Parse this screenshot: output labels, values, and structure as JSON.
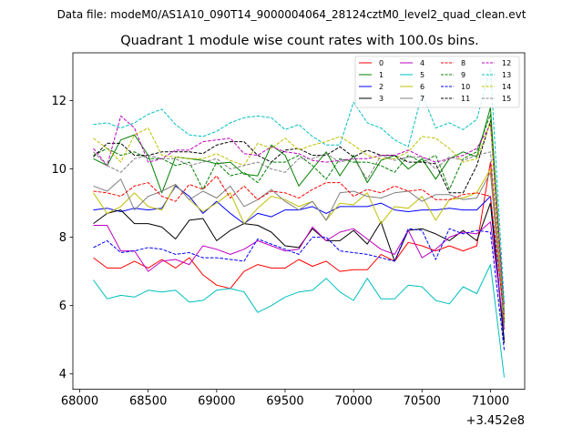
{
  "chart_data": {
    "type": "line",
    "suptitle": "Data file: modeM0/AS1A10_090T14_9000004064_28124cztM0_level2_quad_clean.evt",
    "title": "Quadrant 1 module wise count rates with 100.0s bins.",
    "xlabel": "",
    "ylabel": "",
    "x_offset_label": "+3.452e8",
    "xlim": [
      67950,
      71250
    ],
    "ylim": [
      3.55,
      13.4
    ],
    "x_ticks": [
      68000,
      68500,
      69000,
      69500,
      70000,
      70500,
      71000
    ],
    "x_tick_labels": [
      "68000",
      "68500",
      "69000",
      "69500",
      "70000",
      "70500",
      "71000"
    ],
    "y_ticks": [
      4,
      6,
      8,
      10,
      12
    ],
    "y_tick_labels": [
      "4",
      "6",
      "8",
      "10",
      "12"
    ],
    "legend_position": "top-right",
    "x": [
      68100,
      68200,
      68300,
      68400,
      68500,
      68600,
      68700,
      68800,
      68900,
      69000,
      69100,
      69200,
      69300,
      69400,
      69500,
      69600,
      69700,
      69800,
      69900,
      70000,
      70100,
      70200,
      70300,
      70400,
      70500,
      70600,
      70700,
      70800,
      70900,
      71000,
      71100
    ],
    "series": [
      {
        "name": "0",
        "color": "#ff0000",
        "dash": "solid",
        "values": [
          7.4,
          7.1,
          7.1,
          7.3,
          7.1,
          7.35,
          7.1,
          7.4,
          6.9,
          6.6,
          6.5,
          7.0,
          7.2,
          7.1,
          7.1,
          7.35,
          7.15,
          7.3,
          7.0,
          7.05,
          7.05,
          7.5,
          7.3,
          7.85,
          7.75,
          7.6,
          7.75,
          7.6,
          7.75,
          10.2,
          5.5
        ]
      },
      {
        "name": "1",
        "color": "#008000",
        "dash": "solid",
        "values": [
          10.3,
          10.1,
          10.85,
          11.0,
          10.4,
          9.3,
          10.35,
          10.3,
          10.25,
          10.15,
          10.2,
          9.85,
          9.8,
          10.7,
          10.4,
          9.5,
          10.0,
          10.5,
          9.8,
          10.4,
          9.6,
          10.25,
          10.4,
          10.0,
          10.3,
          9.7,
          10.3,
          10.5,
          10.35,
          11.8,
          5.8
        ]
      },
      {
        "name": "2",
        "color": "#0000ff",
        "dash": "solid",
        "values": [
          8.8,
          8.85,
          8.75,
          8.85,
          8.8,
          8.85,
          9.5,
          9.2,
          8.7,
          9.05,
          8.7,
          8.4,
          8.7,
          8.6,
          8.8,
          8.8,
          8.9,
          8.7,
          8.9,
          8.9,
          8.9,
          9.0,
          8.8,
          8.75,
          8.8,
          8.8,
          8.85,
          8.8,
          8.8,
          9.2,
          5.0
        ]
      },
      {
        "name": "3",
        "color": "#000000",
        "dash": "solid",
        "values": [
          8.4,
          8.7,
          8.8,
          8.4,
          8.4,
          8.3,
          7.95,
          8.5,
          8.55,
          7.9,
          8.2,
          8.4,
          8.35,
          8.15,
          7.75,
          7.7,
          8.25,
          7.9,
          7.9,
          8.2,
          7.8,
          8.45,
          7.3,
          8.2,
          8.25,
          8.1,
          7.9,
          8.2,
          7.9,
          9.0,
          4.9
        ]
      },
      {
        "name": "4",
        "color": "#bf00bf",
        "dash": "solid",
        "values": [
          8.35,
          8.35,
          7.6,
          7.6,
          7.0,
          7.3,
          7.35,
          7.2,
          7.75,
          7.65,
          7.5,
          7.65,
          7.9,
          7.75,
          7.6,
          7.65,
          8.3,
          7.9,
          8.15,
          8.25,
          7.95,
          7.65,
          7.5,
          8.2,
          7.4,
          7.65,
          8.0,
          8.15,
          8.1,
          8.45,
          5.3
        ]
      },
      {
        "name": "5",
        "color": "#00bfbf",
        "dash": "solid",
        "values": [
          6.75,
          6.2,
          6.3,
          6.25,
          6.45,
          6.4,
          6.45,
          6.1,
          6.15,
          6.45,
          6.5,
          6.4,
          5.8,
          6.0,
          6.25,
          6.4,
          6.45,
          6.8,
          6.4,
          6.15,
          6.8,
          6.2,
          6.2,
          6.6,
          6.55,
          6.15,
          6.05,
          6.55,
          6.35,
          7.2,
          3.9
        ]
      },
      {
        "name": "6",
        "color": "#bfbf00",
        "dash": "solid",
        "values": [
          9.3,
          8.7,
          8.9,
          9.3,
          8.9,
          8.8,
          9.55,
          9.1,
          8.75,
          9.0,
          9.3,
          8.4,
          8.85,
          9.2,
          9.1,
          8.9,
          9.05,
          8.5,
          9.0,
          8.95,
          9.3,
          8.4,
          8.9,
          8.85,
          9.2,
          8.5,
          9.1,
          9.15,
          9.3,
          10.0,
          5.6
        ]
      },
      {
        "name": "7",
        "color": "#808080",
        "dash": "solid",
        "values": [
          9.5,
          9.35,
          9.7,
          8.8,
          9.2,
          9.35,
          9.55,
          9.1,
          9.35,
          9.15,
          9.5,
          8.9,
          9.1,
          9.4,
          9.05,
          8.8,
          9.05,
          8.5,
          9.3,
          9.35,
          9.2,
          9.15,
          9.3,
          9.35,
          9.05,
          9.25,
          9.25,
          9.1,
          9.15,
          9.9,
          5.4
        ]
      },
      {
        "name": "8",
        "color": "#ff0000",
        "dash": "dashed",
        "values": [
          9.35,
          9.3,
          9.2,
          9.5,
          9.6,
          9.2,
          9.05,
          9.55,
          9.4,
          9.8,
          9.15,
          9.5,
          9.1,
          9.35,
          9.3,
          9.15,
          9.4,
          9.6,
          9.6,
          9.2,
          9.4,
          9.3,
          9.5,
          9.35,
          9.4,
          9.1,
          9.1,
          9.25,
          9.3,
          9.2,
          5.7
        ]
      },
      {
        "name": "9",
        "color": "#008000",
        "dash": "dashed",
        "values": [
          10.4,
          10.6,
          10.4,
          10.5,
          10.3,
          10.3,
          10.1,
          10.2,
          9.4,
          10.2,
          9.8,
          9.9,
          9.6,
          10.2,
          10.2,
          10.4,
          10.1,
          9.7,
          10.3,
          10.2,
          10.2,
          10.1,
          9.9,
          10.4,
          10.2,
          10.4,
          9.4,
          10.3,
          10.5,
          11.6,
          5.5
        ]
      },
      {
        "name": "10",
        "color": "#0000ff",
        "dash": "dashed",
        "values": [
          7.7,
          7.9,
          7.55,
          7.6,
          7.7,
          7.65,
          7.5,
          7.55,
          7.4,
          7.4,
          7.35,
          7.3,
          7.95,
          7.8,
          7.65,
          7.5,
          8.0,
          8.0,
          7.6,
          7.55,
          7.5,
          7.4,
          7.3,
          8.25,
          8.2,
          7.35,
          8.25,
          8.1,
          8.2,
          8.15,
          4.7
        ]
      },
      {
        "name": "11",
        "color": "#000000",
        "dash": "dashed",
        "values": [
          10.35,
          10.75,
          10.75,
          10.4,
          10.4,
          10.5,
          10.5,
          10.5,
          10.45,
          10.7,
          10.8,
          10.8,
          10.4,
          10.2,
          10.55,
          10.6,
          10.4,
          10.4,
          10.65,
          10.35,
          10.55,
          10.4,
          10.4,
          10.2,
          10.2,
          10.15,
          9.3,
          9.3,
          10.1,
          11.4,
          5.6
        ]
      },
      {
        "name": "12",
        "color": "#bf00bf",
        "dash": "dashed",
        "values": [
          10.6,
          10.1,
          11.55,
          11.2,
          10.2,
          10.3,
          10.55,
          10.55,
          10.8,
          10.85,
          10.9,
          10.45,
          10.4,
          10.65,
          10.5,
          10.45,
          10.25,
          10.2,
          10.25,
          10.3,
          10.3,
          10.4,
          10.4,
          10.55,
          10.35,
          10.2,
          10.3,
          10.4,
          10.6,
          11.3,
          6.0
        ]
      },
      {
        "name": "13",
        "color": "#00bfbf",
        "dash": "dashed",
        "values": [
          11.3,
          11.35,
          11.2,
          11.35,
          11.6,
          11.75,
          11.3,
          11.0,
          10.95,
          11.1,
          11.35,
          11.5,
          11.55,
          11.5,
          11.15,
          11.3,
          10.95,
          10.7,
          10.7,
          11.95,
          11.35,
          11.2,
          10.85,
          10.65,
          12.2,
          11.2,
          11.35,
          11.15,
          11.45,
          12.95,
          6.1
        ]
      },
      {
        "name": "14",
        "color": "#bfbf00",
        "dash": "dashed",
        "values": [
          10.9,
          10.6,
          10.2,
          11.0,
          11.2,
          10.4,
          10.35,
          10.3,
          10.3,
          10.45,
          10.25,
          10.1,
          10.75,
          10.6,
          10.9,
          10.55,
          10.7,
          10.8,
          10.95,
          10.7,
          10.4,
          10.3,
          10.3,
          10.5,
          10.95,
          10.9,
          10.6,
          10.2,
          10.3,
          11.35,
          5.6
        ]
      },
      {
        "name": "15",
        "color": "#808080",
        "dash": "dashed",
        "values": [
          10.5,
          10.1,
          9.9,
          10.3,
          10.4,
          10.3,
          10.3,
          10.1,
          10.2,
          10.3,
          10.0,
          10.1,
          10.2,
          10.0,
          9.9,
          10.3,
          10.3,
          10.45,
          10.2,
          10.3,
          9.7,
          10.4,
          10.25,
          10.35,
          10.35,
          10.0,
          10.35,
          10.25,
          10.4,
          10.5,
          5.8
        ]
      }
    ]
  }
}
